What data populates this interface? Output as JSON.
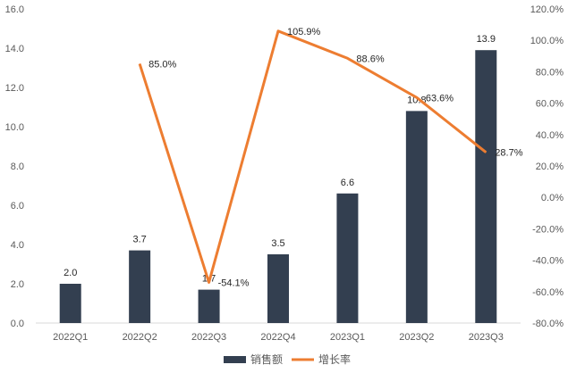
{
  "chart_data": {
    "type": "bar",
    "title": "",
    "categories": [
      "2022Q1",
      "2022Q2",
      "2022Q3",
      "2022Q4",
      "2023Q1",
      "2023Q2",
      "2023Q3"
    ],
    "series": [
      {
        "name": "销售额",
        "type": "bar",
        "axis": "left",
        "values": [
          2.0,
          3.7,
          1.7,
          3.5,
          6.6,
          10.8,
          13.9
        ],
        "labels": [
          "2.0",
          "3.7",
          "1.7",
          "3.5",
          "6.6",
          "10.8",
          "13.9"
        ],
        "color": "#333f50"
      },
      {
        "name": "增长率",
        "type": "line",
        "axis": "right",
        "values": [
          null,
          85.0,
          -54.1,
          105.9,
          88.6,
          63.6,
          28.7
        ],
        "labels": [
          "",
          "85.0%",
          "-54.1%",
          "105.9%",
          "88.6%",
          "63.6%",
          "28.7%"
        ],
        "color": "#ed7d31"
      }
    ],
    "y_left": {
      "min": 0,
      "max": 16,
      "ticks": [
        "0.0",
        "2.0",
        "4.0",
        "6.0",
        "8.0",
        "10.0",
        "12.0",
        "14.0",
        "16.0"
      ]
    },
    "y_right": {
      "min": -80,
      "max": 120,
      "ticks": [
        "-80.0%",
        "-60.0%",
        "-40.0%",
        "-20.0%",
        "0.0%",
        "20.0%",
        "40.0%",
        "60.0%",
        "80.0%",
        "100.0%",
        "120.0%"
      ]
    },
    "xlabel": "",
    "ylabel": "",
    "grid": false,
    "legend_position": "bottom"
  }
}
